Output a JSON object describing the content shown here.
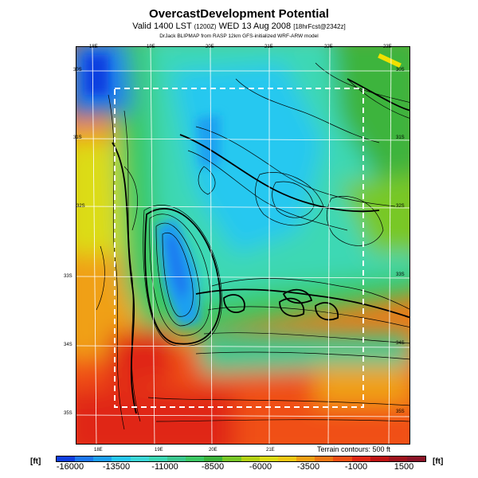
{
  "header": {
    "title": "OvercastDevelopment Potential",
    "valid_main": "Valid 1400 LST",
    "valid_z": "(1200Z)",
    "valid_date": "WED 13 Aug 2008",
    "valid_fcst": "[18hrFcst@2342z]",
    "credit": "DrJack BLIPMAP from RASP 12km GFS-initialized WRF-ARW model"
  },
  "map": {
    "lon_top": [
      "18E",
      "19E",
      "20E",
      "21E",
      "22E",
      "23E"
    ],
    "lon_bottom": [
      "18E",
      "19E",
      "20E",
      "21E"
    ],
    "lat_left": [
      "30S",
      "31S",
      "32S",
      "33S",
      "34S",
      "35S"
    ],
    "lat_right": [
      "30S",
      "31S",
      "32S",
      "33S",
      "34S",
      "35S"
    ],
    "terrain_note": "Terrain contours: 500 ft"
  },
  "colorbar": {
    "unit_left": "[ft]",
    "unit_right": "[ft]",
    "labels": [
      "-16000",
      "-13500",
      "-11000",
      "-8500",
      "-6000",
      "-3500",
      "-1000",
      "1500"
    ],
    "colors": [
      "#1040e0",
      "#1e78f0",
      "#1ea0f0",
      "#28c8f0",
      "#3cd8d8",
      "#3cd8b4",
      "#3cc890",
      "#3cc864",
      "#3cb43c",
      "#78c828",
      "#b4d214",
      "#dcdc14",
      "#f0c814",
      "#f0a014",
      "#f07814",
      "#f05014",
      "#e02814",
      "#c01414",
      "#a0141e",
      "#8c1428"
    ]
  }
}
